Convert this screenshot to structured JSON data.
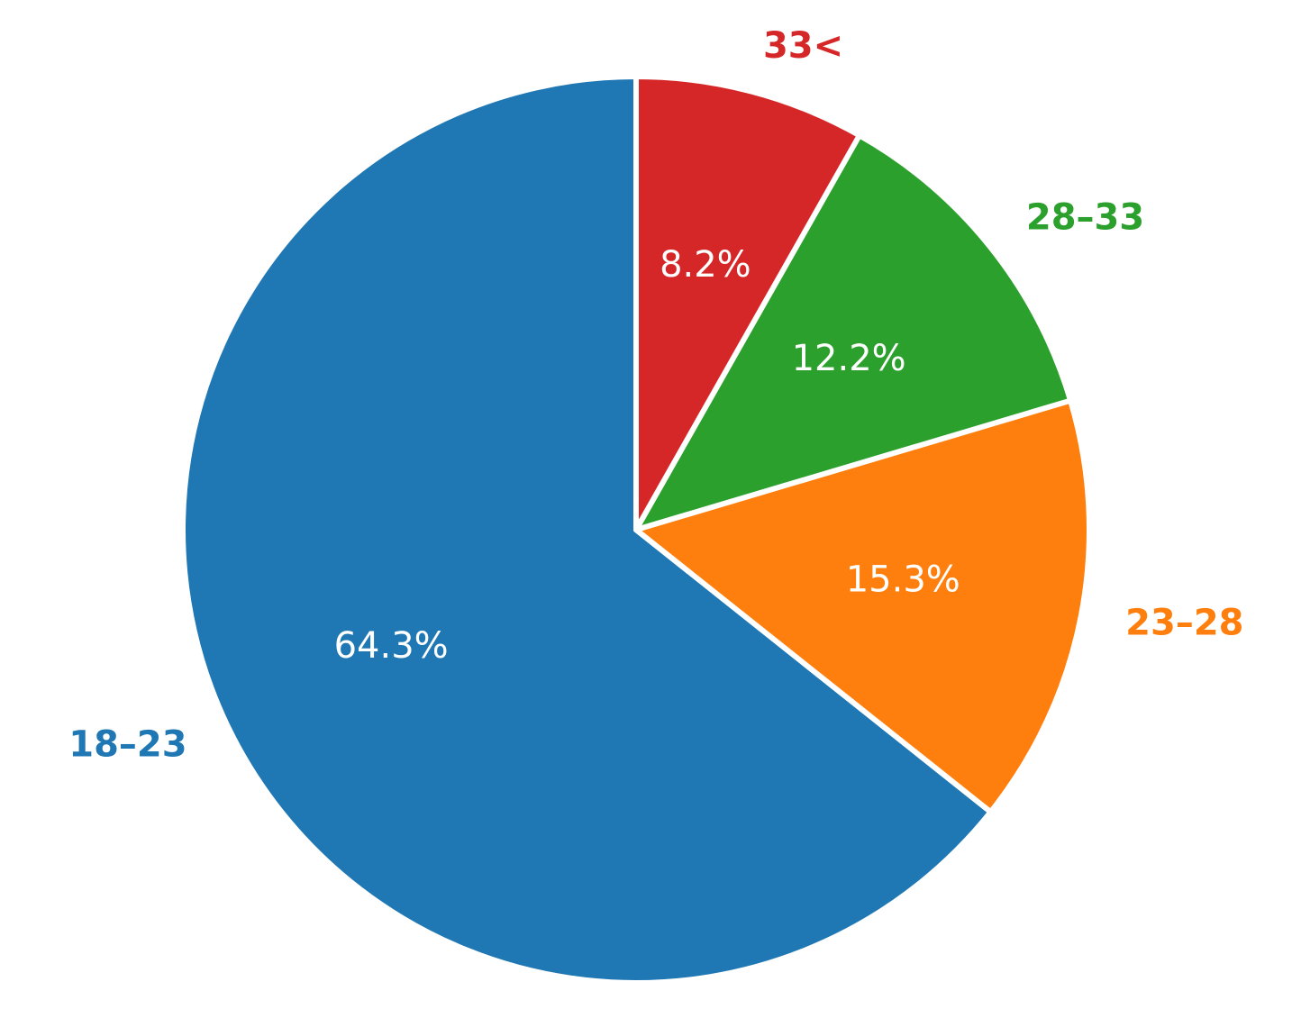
{
  "chart_data": {
    "type": "pie",
    "categories": [
      "18–23",
      "23–28",
      "28–33",
      "33<"
    ],
    "values": [
      64.3,
      15.3,
      12.2,
      8.2
    ],
    "value_labels": [
      "64.3%",
      "15.3%",
      "12.2%",
      "8.2%"
    ],
    "colors": [
      "#1f77b4",
      "#ff7f0e",
      "#2ca02c",
      "#d62728"
    ],
    "start_angle": 90,
    "direction": "counterclockwise"
  }
}
